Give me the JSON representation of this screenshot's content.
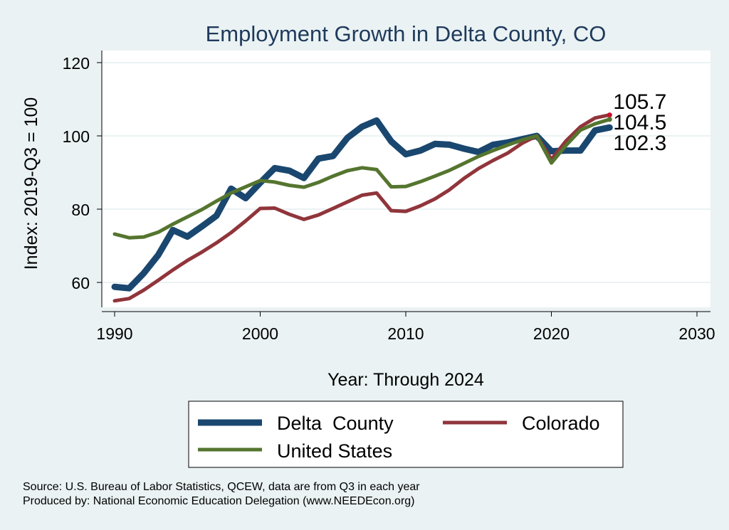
{
  "chart_data": {
    "type": "line",
    "title": "Employment Growth in Delta County, CO",
    "xlabel": "Year: Through 2024",
    "ylabel": "Index: 2019-Q3 = 100",
    "xlim": [
      1990,
      2030
    ],
    "ylim": [
      50,
      120
    ],
    "xticks": [
      "1990",
      "2000",
      "2010",
      "2020",
      "2030"
    ],
    "yticks": [
      "60",
      "80",
      "100",
      "120"
    ],
    "x": [
      1990,
      1991,
      1992,
      1993,
      1994,
      1995,
      1996,
      1997,
      1998,
      1999,
      2000,
      2001,
      2002,
      2003,
      2004,
      2005,
      2006,
      2007,
      2008,
      2009,
      2010,
      2011,
      2012,
      2013,
      2014,
      2015,
      2016,
      2017,
      2018,
      2019,
      2020,
      2021,
      2022,
      2023,
      2024
    ],
    "series": [
      {
        "name": "Delta  County",
        "color": "#1a476f",
        "values": [
          58.8,
          58.4,
          62.5,
          67.5,
          74.3,
          72.5,
          75.3,
          78.2,
          85.6,
          83.0,
          87.2,
          91.2,
          90.5,
          88.5,
          93.8,
          94.5,
          99.5,
          102.5,
          104.2,
          98.5,
          95.0,
          96.0,
          97.8,
          97.6,
          96.5,
          95.6,
          97.6,
          98.2,
          99.1,
          100.0,
          95.8,
          96.0,
          96.0,
          101.5,
          102.3
        ],
        "end_label": "102.3"
      },
      {
        "name": "Colorado",
        "color": "#90353b",
        "values": [
          55.0,
          55.6,
          57.9,
          60.6,
          63.4,
          66.0,
          68.3,
          70.8,
          73.6,
          76.8,
          80.2,
          80.3,
          78.6,
          77.2,
          78.4,
          80.2,
          82.0,
          83.8,
          84.4,
          79.6,
          79.4,
          80.9,
          82.8,
          85.3,
          88.4,
          91.1,
          93.3,
          95.3,
          98.0,
          100.0,
          93.6,
          98.6,
          102.5,
          104.9,
          105.7
        ],
        "end_label": "105.7"
      },
      {
        "name": "United States",
        "color": "#55752f",
        "values": [
          73.2,
          72.2,
          72.4,
          73.7,
          75.9,
          77.9,
          79.9,
          82.2,
          84.4,
          86.1,
          87.8,
          87.4,
          86.5,
          86.0,
          87.3,
          89.0,
          90.5,
          91.3,
          90.8,
          86.1,
          86.2,
          87.5,
          89.0,
          90.6,
          92.5,
          94.4,
          96.0,
          97.5,
          98.9,
          100.0,
          92.6,
          97.4,
          101.6,
          103.3,
          104.5
        ],
        "end_label": "104.5"
      }
    ],
    "legend_position": "bottom",
    "notes": [
      "Source: U.S. Bureau of Labor Statistics, QCEW, data are from Q3 in each year",
      "Produced by: National Economic Education Delegation (www.NEEDEcon.org)"
    ]
  }
}
